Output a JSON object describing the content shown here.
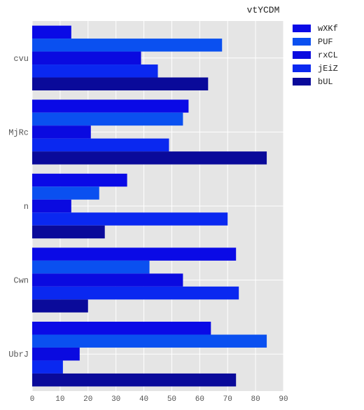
{
  "chart_data": {
    "type": "bar",
    "orientation": "horizontal",
    "title": "vtYCDM",
    "xlabel": "",
    "ylabel": "",
    "xlim": [
      0,
      90
    ],
    "xticks": [
      0,
      10,
      20,
      30,
      40,
      50,
      60,
      70,
      80,
      90
    ],
    "grid": true,
    "legend_position": "top-right, outside plot",
    "categories": [
      "UbrJ",
      "Cwn",
      "n",
      "MjRc",
      "cvu"
    ],
    "series": [
      {
        "name": "wXKf",
        "color": "#0a0ae6",
        "values": [
          64,
          73,
          34,
          56,
          14
        ]
      },
      {
        "name": "PUF",
        "color": "#0a50f0",
        "values": [
          84,
          42,
          24,
          54,
          68
        ]
      },
      {
        "name": "rxCL",
        "color": "#0a0ae0",
        "values": [
          17,
          54,
          14,
          21,
          39
        ]
      },
      {
        "name": "jEiZ",
        "color": "#0a28f0",
        "values": [
          11,
          74,
          70,
          49,
          45
        ]
      },
      {
        "name": "bUL",
        "color": "#0a0a9a",
        "values": [
          73,
          20,
          26,
          84,
          63
        ]
      }
    ]
  },
  "colors": {
    "plot_background": "#e5e5e5",
    "grid": "#ffffff",
    "axis_text": "#555555",
    "title_text": "#222222"
  }
}
